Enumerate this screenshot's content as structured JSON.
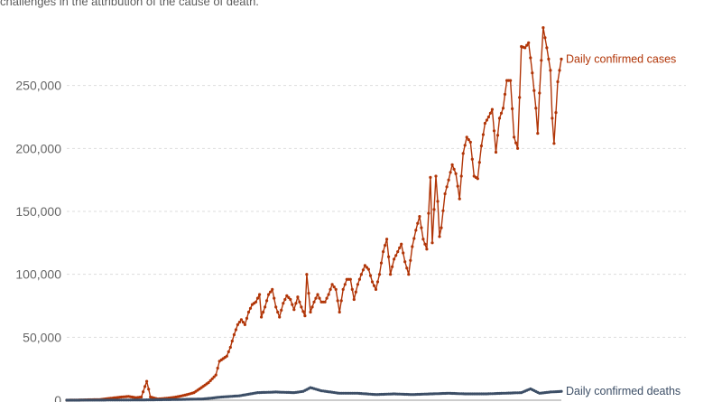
{
  "note": "challenges in the attribution of the cause of death.",
  "chart_data": {
    "type": "line",
    "title": "",
    "xlabel": "",
    "ylabel": "",
    "ylim": [
      0,
      300000
    ],
    "yticks": [
      0,
      50000,
      100000,
      150000,
      200000,
      250000
    ],
    "ytick_labels": [
      "0",
      "50,000",
      "100,000",
      "150,000",
      "200,000",
      "250,000"
    ],
    "grid": true,
    "legend": "end-of-line labels",
    "series": [
      {
        "name": "Daily confirmed cases",
        "color": "#b13507",
        "anchors": [
          [
            0,
            0
          ],
          [
            18,
            500
          ],
          [
            24,
            1500
          ],
          [
            30,
            2500
          ],
          [
            34,
            3000
          ],
          [
            38,
            2000
          ],
          [
            41,
            2500
          ],
          [
            44,
            15000
          ],
          [
            46,
            2500
          ],
          [
            50,
            1000
          ],
          [
            55,
            1500
          ],
          [
            60,
            2500
          ],
          [
            65,
            4000
          ],
          [
            70,
            6000
          ],
          [
            74,
            10000
          ],
          [
            78,
            14000
          ],
          [
            82,
            20000
          ],
          [
            84,
            31000
          ],
          [
            86,
            33000
          ],
          [
            88,
            35000
          ],
          [
            90,
            42000
          ],
          [
            92,
            52000
          ],
          [
            94,
            60000
          ],
          [
            96,
            64000
          ],
          [
            98,
            60000
          ],
          [
            100,
            70000
          ],
          [
            102,
            76000
          ],
          [
            104,
            78000
          ],
          [
            106,
            84000
          ],
          [
            107,
            66000
          ],
          [
            109,
            74000
          ],
          [
            111,
            84000
          ],
          [
            113,
            88000
          ],
          [
            115,
            74000
          ],
          [
            117,
            66000
          ],
          [
            119,
            77000
          ],
          [
            121,
            83000
          ],
          [
            123,
            80000
          ],
          [
            125,
            72000
          ],
          [
            127,
            82000
          ],
          [
            129,
            74000
          ],
          [
            131,
            67000
          ],
          [
            132,
            100000
          ],
          [
            134,
            70000
          ],
          [
            136,
            78000
          ],
          [
            138,
            84000
          ],
          [
            140,
            78000
          ],
          [
            142,
            78000
          ],
          [
            144,
            84000
          ],
          [
            146,
            92000
          ],
          [
            148,
            88000
          ],
          [
            150,
            70000
          ],
          [
            152,
            88000
          ],
          [
            154,
            96000
          ],
          [
            156,
            96000
          ],
          [
            158,
            80000
          ],
          [
            160,
            92000
          ],
          [
            162,
            100000
          ],
          [
            164,
            107000
          ],
          [
            166,
            104000
          ],
          [
            168,
            94000
          ],
          [
            170,
            88000
          ],
          [
            172,
            100000
          ],
          [
            174,
            118000
          ],
          [
            176,
            128000
          ],
          [
            178,
            100000
          ],
          [
            180,
            112000
          ],
          [
            182,
            118000
          ],
          [
            184,
            124000
          ],
          [
            186,
            110000
          ],
          [
            188,
            100000
          ],
          [
            190,
            122000
          ],
          [
            192,
            135000
          ],
          [
            194,
            146000
          ],
          [
            196,
            128000
          ],
          [
            198,
            120000
          ],
          [
            200,
            177000
          ],
          [
            201,
            125000
          ],
          [
            203,
            178000
          ],
          [
            204,
            158000
          ],
          [
            205,
            130000
          ],
          [
            206,
            137000
          ],
          [
            208,
            164000
          ],
          [
            210,
            175000
          ],
          [
            212,
            187000
          ],
          [
            214,
            180000
          ],
          [
            216,
            160000
          ],
          [
            218,
            196000
          ],
          [
            220,
            209000
          ],
          [
            222,
            205000
          ],
          [
            224,
            178000
          ],
          [
            226,
            176000
          ],
          [
            228,
            202000
          ],
          [
            230,
            220000
          ],
          [
            232,
            225000
          ],
          [
            234,
            231000
          ],
          [
            236,
            197000
          ],
          [
            238,
            224000
          ],
          [
            240,
            232000
          ],
          [
            242,
            254000
          ],
          [
            244,
            254000
          ],
          [
            246,
            209000
          ],
          [
            248,
            200000
          ],
          [
            250,
            281000
          ],
          [
            252,
            280000
          ],
          [
            254,
            284000
          ],
          [
            256,
            260000
          ],
          [
            258,
            232000
          ],
          [
            259,
            212000
          ],
          [
            260,
            244000
          ],
          [
            262,
            296000
          ],
          [
            264,
            280000
          ],
          [
            266,
            262000
          ],
          [
            267,
            224000
          ],
          [
            268,
            204000
          ],
          [
            270,
            253000
          ],
          [
            272,
            271000
          ]
        ]
      },
      {
        "name": "Daily confirmed deaths",
        "color": "#3c4e66",
        "anchors": [
          [
            0,
            0
          ],
          [
            40,
            200
          ],
          [
            60,
            500
          ],
          [
            75,
            1000
          ],
          [
            85,
            2500
          ],
          [
            95,
            3500
          ],
          [
            105,
            6000
          ],
          [
            115,
            6500
          ],
          [
            125,
            6000
          ],
          [
            130,
            7000
          ],
          [
            134,
            10000
          ],
          [
            140,
            7500
          ],
          [
            150,
            5500
          ],
          [
            160,
            5500
          ],
          [
            170,
            4500
          ],
          [
            180,
            5000
          ],
          [
            190,
            4500
          ],
          [
            200,
            5000
          ],
          [
            210,
            5500
          ],
          [
            220,
            5000
          ],
          [
            230,
            5000
          ],
          [
            240,
            5500
          ],
          [
            250,
            6000
          ],
          [
            255,
            9000
          ],
          [
            260,
            5500
          ],
          [
            266,
            6500
          ],
          [
            272,
            7000
          ]
        ]
      }
    ]
  }
}
